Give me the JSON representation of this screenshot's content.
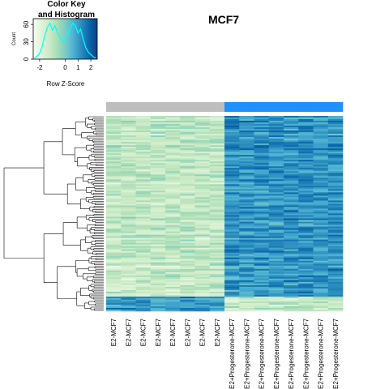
{
  "chart_data": {
    "type": "heatmap",
    "title": "MCF7",
    "color_key": {
      "title_line1": "Color Key",
      "title_line2": "and Histogram",
      "xlabel": "Row Z-Score",
      "ylabel": "Count",
      "xticks": [
        -2,
        0,
        1,
        2
      ],
      "yticks": [
        0,
        30,
        60
      ],
      "xlim": [
        -2.5,
        2.5
      ],
      "ylim": [
        0,
        70
      ],
      "palette": [
        "#f7fcf0",
        "#e0f3db",
        "#ccebc5",
        "#a8ddb5",
        "#7bccc4",
        "#4eb3d3",
        "#2b8cbe",
        "#0868ac",
        "#084081"
      ],
      "histogram": {
        "x": [
          -2.4,
          -2.2,
          -2.0,
          -1.8,
          -1.6,
          -1.4,
          -1.2,
          -1.0,
          -0.8,
          -0.6,
          -0.4,
          -0.2,
          0.0,
          0.2,
          0.4,
          0.6,
          0.8,
          1.0,
          1.2,
          1.4,
          1.6,
          1.8,
          2.0,
          2.2,
          2.4
        ],
        "counts": [
          2,
          5,
          10,
          22,
          40,
          55,
          62,
          50,
          58,
          45,
          38,
          30,
          34,
          42,
          55,
          62,
          58,
          45,
          52,
          35,
          20,
          12,
          8,
          4,
          2
        ]
      }
    },
    "columns": [
      {
        "label": "E2-MCF7",
        "group": "E2"
      },
      {
        "label": "E2-MCF7",
        "group": "E2"
      },
      {
        "label": "E2-MCF7",
        "group": "E2"
      },
      {
        "label": "E2-MCF7",
        "group": "E2"
      },
      {
        "label": "E2-MCF7",
        "group": "E2"
      },
      {
        "label": "E2-MCF7",
        "group": "E2"
      },
      {
        "label": "E2-MCF7",
        "group": "E2"
      },
      {
        "label": "E2-MCF7",
        "group": "E2"
      },
      {
        "label": "E2+Progesterone-MCF7",
        "group": "E2+Progesterone"
      },
      {
        "label": "E2+Progesterone-MCF7",
        "group": "E2+Progesterone"
      },
      {
        "label": "E2+Progesterone-MCF7",
        "group": "E2+Progesterone"
      },
      {
        "label": "E2+Progesterone-MCF7",
        "group": "E2+Progesterone"
      },
      {
        "label": "E2+Progesterone-MCF7",
        "group": "E2+Progesterone"
      },
      {
        "label": "E2+Progesterone-MCF7",
        "group": "E2+Progesterone"
      },
      {
        "label": "E2+Progesterone-MCF7",
        "group": "E2+Progesterone"
      },
      {
        "label": "E2+Progesterone-MCF7",
        "group": "E2+Progesterone"
      }
    ],
    "group_colors": {
      "E2": "#bebebe",
      "E2+Progesterone": "#1e90ff"
    },
    "n_rows": 120,
    "row_zscore_range": [
      -2.5,
      2.5
    ]
  }
}
